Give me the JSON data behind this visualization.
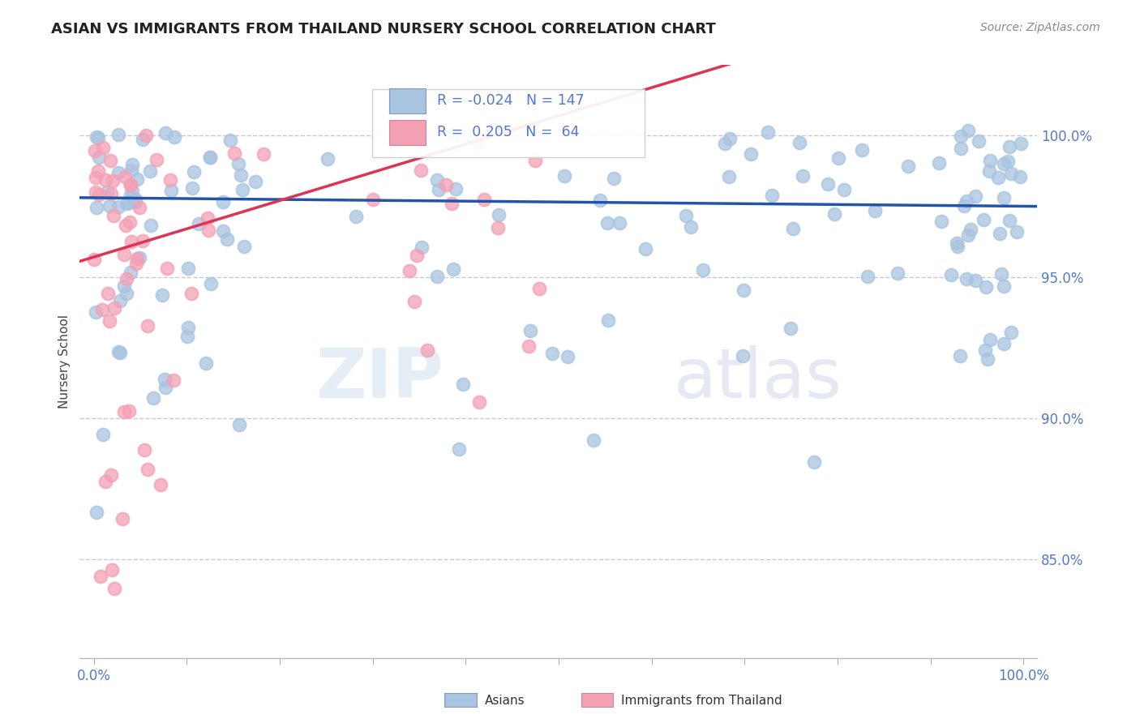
{
  "title": "ASIAN VS IMMIGRANTS FROM THAILAND NURSERY SCHOOL CORRELATION CHART",
  "source": "Source: ZipAtlas.com",
  "ylabel": "Nursery School",
  "legend_label1": "Asians",
  "legend_label2": "Immigrants from Thailand",
  "R1": -0.024,
  "N1": 147,
  "R2": 0.205,
  "N2": 64,
  "color_asian": "#a8c4e0",
  "color_thai": "#f4a0b4",
  "color_trendline_asian": "#2255aa",
  "color_trendline_thai": "#dd3355",
  "color_dashed_line": "#bbbbcc",
  "color_ytick": "#5577cc",
  "color_xtick": "#5577cc",
  "watermark_zip": "ZIP",
  "watermark_atlas": "atlas",
  "ytick_labels": [
    "100.0%",
    "95.0%",
    "90.0%",
    "85.0%"
  ],
  "ytick_values": [
    1.0,
    0.95,
    0.9,
    0.85
  ],
  "ymin": 0.815,
  "ymax": 1.025,
  "xmin": -0.015,
  "xmax": 1.015
}
